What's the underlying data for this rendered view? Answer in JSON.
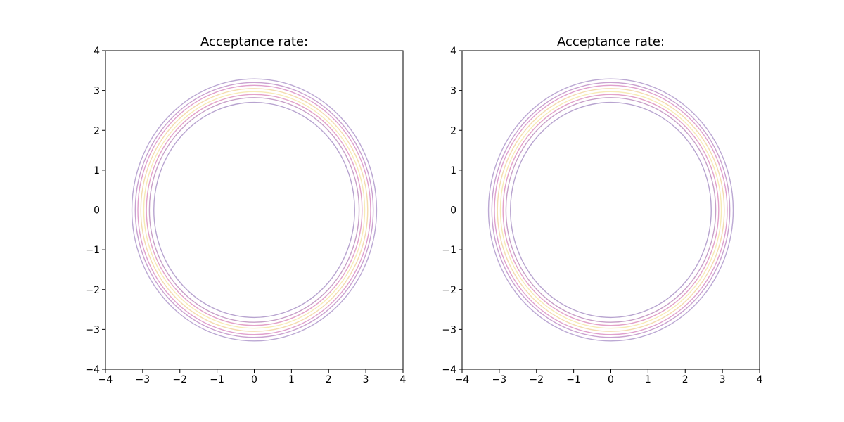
{
  "chart_data": [
    {
      "type": "contour",
      "title": "Acceptance rate:",
      "xlim": [
        -4,
        4
      ],
      "ylim": [
        -4,
        4
      ],
      "xticks": [
        "−4",
        "−3",
        "−2",
        "−1",
        "0",
        "1",
        "2",
        "3",
        "4"
      ],
      "yticks": [
        "−4",
        "−3",
        "−2",
        "−1",
        "0",
        "1",
        "2",
        "3",
        "4"
      ],
      "xtick_values": [
        -4,
        -3,
        -2,
        -1,
        0,
        1,
        2,
        3,
        4
      ],
      "ytick_values": [
        -4,
        -3,
        -2,
        -1,
        0,
        1,
        2,
        3,
        4
      ],
      "grid": false,
      "center": [
        0,
        0
      ],
      "contour_levels": [
        {
          "radius": 2.7,
          "color": "#b7a3cf"
        },
        {
          "radius": 2.82,
          "color": "#c79fc8"
        },
        {
          "radius": 2.9,
          "color": "#e3a2c9"
        },
        {
          "radius": 2.97,
          "color": "#f7ebb6"
        },
        {
          "radius": 3.05,
          "color": "#f4dcb0"
        },
        {
          "radius": 3.13,
          "color": "#e0a0cd"
        },
        {
          "radius": 3.2,
          "color": "#c9a1d0"
        },
        {
          "radius": 3.29,
          "color": "#bba8d3"
        }
      ]
    },
    {
      "type": "contour",
      "title": "Acceptance rate:",
      "xlim": [
        -4,
        4
      ],
      "ylim": [
        -4,
        4
      ],
      "xticks": [
        "−4",
        "−3",
        "−2",
        "−1",
        "0",
        "1",
        "2",
        "3",
        "4"
      ],
      "yticks": [
        "−4",
        "−3",
        "−2",
        "−1",
        "0",
        "1",
        "2",
        "3",
        "4"
      ],
      "xtick_values": [
        -4,
        -3,
        -2,
        -1,
        0,
        1,
        2,
        3,
        4
      ],
      "ytick_values": [
        -4,
        -3,
        -2,
        -1,
        0,
        1,
        2,
        3,
        4
      ],
      "grid": false,
      "center": [
        0,
        0
      ],
      "contour_levels": [
        {
          "radius": 2.7,
          "color": "#b7a3cf"
        },
        {
          "radius": 2.82,
          "color": "#c79fc8"
        },
        {
          "radius": 2.9,
          "color": "#e3a2c9"
        },
        {
          "radius": 2.97,
          "color": "#f7ebb6"
        },
        {
          "radius": 3.05,
          "color": "#f4dcb0"
        },
        {
          "radius": 3.13,
          "color": "#e0a0cd"
        },
        {
          "radius": 3.2,
          "color": "#c9a1d0"
        },
        {
          "radius": 3.29,
          "color": "#bba8d3"
        }
      ]
    }
  ]
}
